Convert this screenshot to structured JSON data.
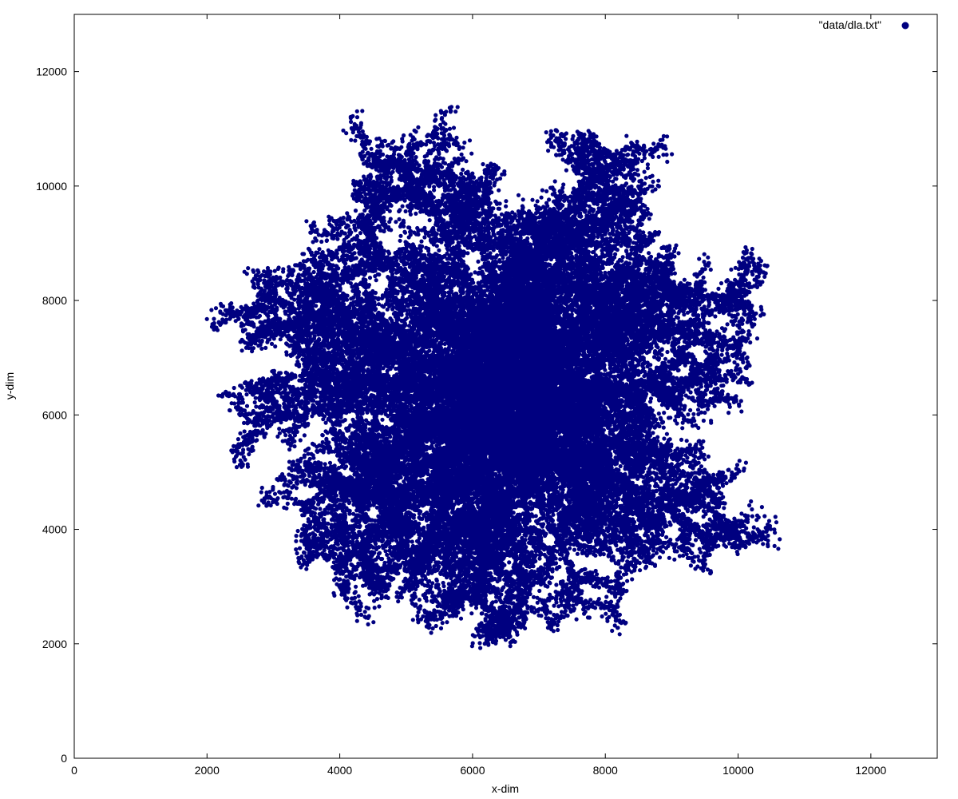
{
  "chart_data": {
    "type": "scatter",
    "title": "",
    "xlabel": "x-dim",
    "ylabel": "y-dim",
    "xlim": [
      0,
      13000
    ],
    "ylim": [
      0,
      13000
    ],
    "xticks": [
      0,
      2000,
      4000,
      6000,
      8000,
      10000,
      12000
    ],
    "yticks": [
      0,
      2000,
      4000,
      6000,
      8000,
      10000,
      12000
    ],
    "xtick_labels": [
      "0",
      "2000",
      "4000",
      "6000",
      "8000",
      "10000",
      "12000"
    ],
    "ytick_labels": [
      "0",
      "2000",
      "4000",
      "6000",
      "8000",
      "10000",
      "12000"
    ],
    "grid": false,
    "legend_position": "top-right",
    "series": [
      {
        "name": "\"data/dla.txt\"",
        "color": "#000080",
        "marker": "filled-circle",
        "center": [
          6500,
          6500
        ],
        "arms": [
          {
            "tip": [
              5100,
              10600
            ]
          },
          {
            "tip": [
              6000,
              10200
            ]
          },
          {
            "tip": [
              4300,
              9400
            ]
          },
          {
            "tip": [
              7700,
              10100
            ]
          },
          {
            "tip": [
              8000,
              10600
            ]
          },
          {
            "tip": [
              7100,
              9400
            ]
          },
          {
            "tip": [
              6800,
              8800
            ]
          },
          {
            "tip": [
              6200,
              8200
            ]
          },
          {
            "tip": [
              8800,
              9200
            ]
          },
          {
            "tip": [
              9000,
              8300
            ]
          },
          {
            "tip": [
              10150,
              7950
            ]
          },
          {
            "tip": [
              9500,
              8300
            ]
          },
          {
            "tip": [
              10200,
              6600
            ]
          },
          {
            "tip": [
              8500,
              6300
            ]
          },
          {
            "tip": [
              2800,
              8100
            ]
          },
          {
            "tip": [
              3600,
              8200
            ]
          },
          {
            "tip": [
              3000,
              6700
            ]
          },
          {
            "tip": [
              2600,
              5900
            ]
          },
          {
            "tip": [
              3400,
              4400
            ]
          },
          {
            "tip": [
              4000,
              4600
            ]
          },
          {
            "tip": [
              3900,
              3300
            ]
          },
          {
            "tip": [
              4850,
              2800
            ]
          },
          {
            "tip": [
              5550,
              3400
            ]
          },
          {
            "tip": [
              6000,
              2700
            ]
          },
          {
            "tip": [
              6700,
              2300
            ]
          },
          {
            "tip": [
              7600,
              2750
            ]
          },
          {
            "tip": [
              7400,
              4800
            ]
          },
          {
            "tip": [
              7900,
              5800
            ]
          },
          {
            "tip": [
              7900,
              4200
            ]
          },
          {
            "tip": [
              8800,
              5200
            ]
          },
          {
            "tip": [
              9650,
              3700
            ]
          },
          {
            "tip": [
              9600,
              4650
            ]
          },
          {
            "tip": [
              8700,
              3400
            ]
          }
        ]
      }
    ]
  }
}
